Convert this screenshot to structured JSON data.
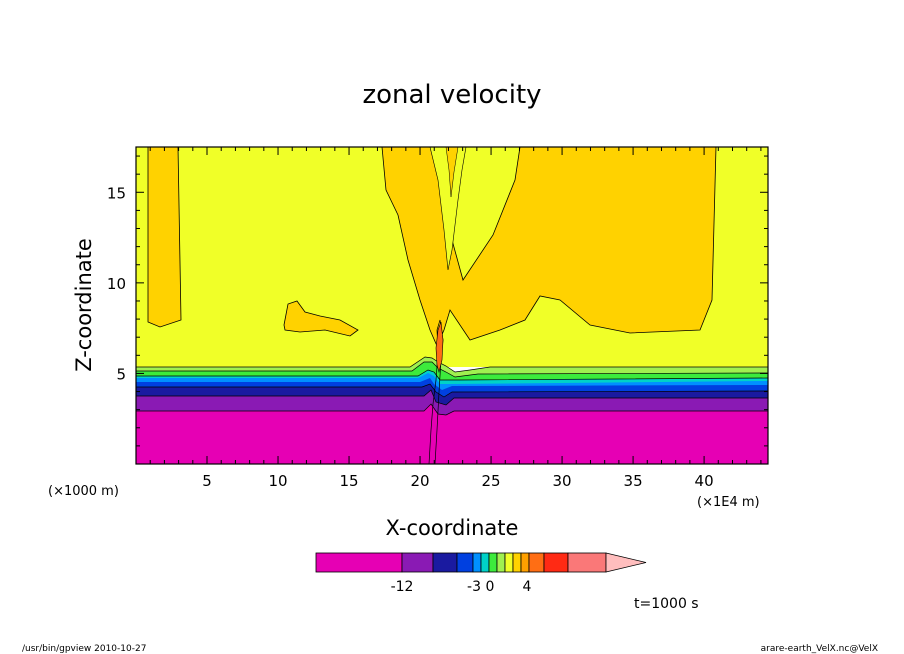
{
  "chart_data": {
    "type": "contour",
    "title": "zonal velocity",
    "xlabel": "X-coordinate",
    "ylabel": "Z-coordinate",
    "x_unit_left": "(×1000 m)",
    "x_unit_right": "(×1E4 m)",
    "xlim": [
      0,
      44.5
    ],
    "ylim": [
      0,
      17.5
    ],
    "xticks": [
      5,
      10,
      15,
      20,
      25,
      30,
      35,
      40
    ],
    "yticks": [
      5,
      10,
      15
    ],
    "legend": {
      "labels": [
        {
          "text": "-12",
          "value": -12
        },
        {
          "text": "-3",
          "value": -3
        },
        {
          "text": "0",
          "value": 0
        },
        {
          "text": "4",
          "value": 4
        }
      ],
      "colors": [
        "#e600b4",
        "#8a1ab4",
        "#1a1aa0",
        "#0040e0",
        "#0090ff",
        "#00d2c8",
        "#3ceb3c",
        "#a0f050",
        "#f0ff28",
        "#ffd200",
        "#ffa000",
        "#ff6e14",
        "#ff2a14",
        "#fa7878",
        "#ffbebe"
      ]
    },
    "time_label": "t=1000 s",
    "footer_left": "/usr/bin/gpview   2010-10-27",
    "footer_right": "arare-earth_VelX.nc@VelX"
  }
}
